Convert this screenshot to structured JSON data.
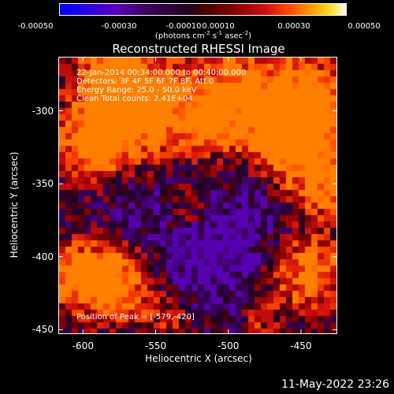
{
  "colorbar": {
    "ticks": [
      "-0.00050",
      "-0.00030",
      "-0.00010",
      "0.00010",
      "0.00030",
      "0.00050"
    ],
    "unit": {
      "pre": "(photons cm",
      "e1": "-2",
      "mid1": " s",
      "e2": "-1",
      "mid2": " asec",
      "e3": "-2",
      "post": ")"
    }
  },
  "info": {
    "line1": "22-Jan-2014 00:34:00.000 to 00:40:00.000",
    "line2": "Detectors: 3F 4F 5F 6F 7F 8F, Att 0",
    "line3": "Energy Range: 25.0 - 50.0 keV",
    "line4": "Clean     Total counts: 2.41E+04",
    "peak": "Position of Peak = [-579,-420]"
  },
  "footer": "11-May-2022 23:26",
  "chart_data": {
    "type": "heatmap",
    "title": "Reconstructed RHESSI Image",
    "xlabel": "Heliocentric X (arcsec)",
    "ylabel": "Heliocentric Y (arcsec)",
    "xlim": [
      -617,
      -425
    ],
    "ylim": [
      -453,
      -263
    ],
    "xticks": [
      "-600",
      "-550",
      "-500",
      "-450"
    ],
    "xtick_values": [
      -600,
      -550,
      -500,
      -450
    ],
    "yticks": [
      "-300",
      "-350",
      "-400",
      "-450"
    ],
    "ytick_values": [
      -300,
      -350,
      -400,
      -450
    ],
    "zlim": [
      -0.0005,
      0.0005
    ],
    "peak": [
      -579,
      -420
    ],
    "colormap": [
      "#0000ff",
      "#5a00b8",
      "#3a0060",
      "#200020",
      "#8b0000",
      "#d01010",
      "#ff4a00",
      "#ff9a00",
      "#ffe030",
      "#ffffff"
    ]
  }
}
